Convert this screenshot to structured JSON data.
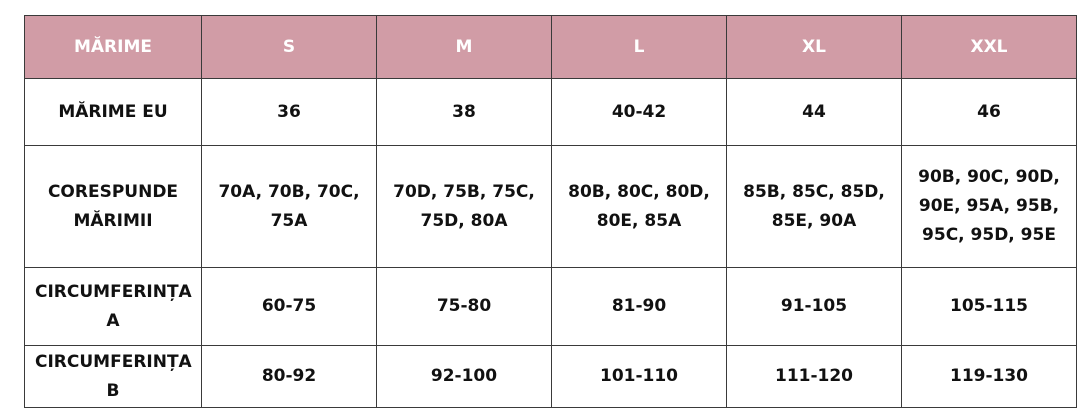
{
  "table": {
    "header": [
      "MĂRIME",
      "S",
      "M",
      "L",
      "XL",
      "XXL"
    ],
    "rows": [
      [
        "MĂRIME EU",
        "36",
        "38",
        "40-42",
        "44",
        "46"
      ],
      [
        "CORESPUNDE MĂRIMII",
        "70A, 70B, 70C, 75A",
        "70D, 75B, 75C, 75D, 80A",
        "80B, 80C, 80D, 80E, 85A",
        "85B, 85C, 85D, 85E, 90A",
        "90B, 90C, 90D, 90E, 95A, 95B, 95C, 95D, 95E"
      ],
      [
        "CIRCUMFERINȚA A",
        "60-75",
        "75-80",
        "81-90",
        "91-105",
        "105-115"
      ],
      [
        "CIRCUMFERINȚA B",
        "80-92",
        "92-100",
        "101-110",
        "111-120",
        "119-130"
      ]
    ]
  }
}
